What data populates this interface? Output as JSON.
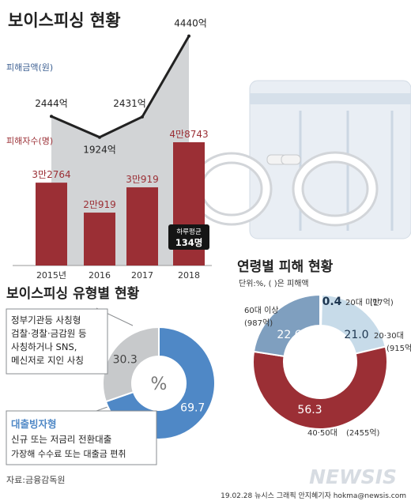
{
  "header": {
    "title": "보이스피싱 현황"
  },
  "chart_data": [
    {
      "type": "bar",
      "categories": [
        "2015년",
        "2016",
        "2017",
        "2018"
      ],
      "series_label": "피해자수(명)",
      "values": [
        32764,
        20919,
        30919,
        48743
      ],
      "value_labels": [
        "3만2764",
        "2만919",
        "3만919",
        "4만8743"
      ],
      "color": "#9b2f35",
      "callout": {
        "line1": "하루평균",
        "line2": "134명"
      }
    },
    {
      "type": "line",
      "series_label": "피해금액(원)",
      "values": [
        2444,
        1924,
        2431,
        4440
      ],
      "unit": "억",
      "value_labels": [
        "2444억",
        "1924억",
        "2431억",
        "4440억"
      ]
    },
    {
      "type": "pie",
      "title": "보이스피싱 유형별 현황",
      "center_label": "%",
      "slices": [
        {
          "label": "대출빙자형",
          "value": 69.7,
          "color": "#4f88c6"
        },
        {
          "label": "정부기관등 사칭형",
          "value": 30.3,
          "color": "#c7c9cb"
        }
      ],
      "notes": {
        "gov_lines": [
          "정부기관등 사칭형",
          "검찰·경찰·금감원 등",
          "사칭하거나 SNS,",
          "메신저로 지인 사칭"
        ],
        "loan_title": "대출빙자형",
        "loan_lines": [
          "신규 또는 저금리 전환대출",
          "가장해 수수료 또는 대출금 편취"
        ]
      }
    },
    {
      "type": "pie",
      "title": "연령별 피해 현황",
      "subtitle": "단위:%, ( )은 피해액",
      "slices": [
        {
          "label": "20대 미만",
          "amount": "(17억)",
          "value": 0.4,
          "color": "#1e3650"
        },
        {
          "label": "20·30대",
          "amount": "(915억)",
          "value": 21.0,
          "color": "#c7dbe9"
        },
        {
          "label": "40·50대",
          "amount": "(2455억)",
          "value": 56.3,
          "color": "#9b2f35"
        },
        {
          "label": "60대 이상",
          "amount": "(987억)",
          "value": 22.6,
          "color": "#7f9fbf"
        }
      ]
    }
  ],
  "footer": {
    "source": "자료:금융감독원",
    "credit": "19.02.28  뉴시스 그래픽  안지혜기자  hokma@newsis.com",
    "watermark": "NEWSIS"
  },
  "colors": {
    "accent_red": "#9b2f35",
    "accent_blue": "#4f88c6"
  }
}
